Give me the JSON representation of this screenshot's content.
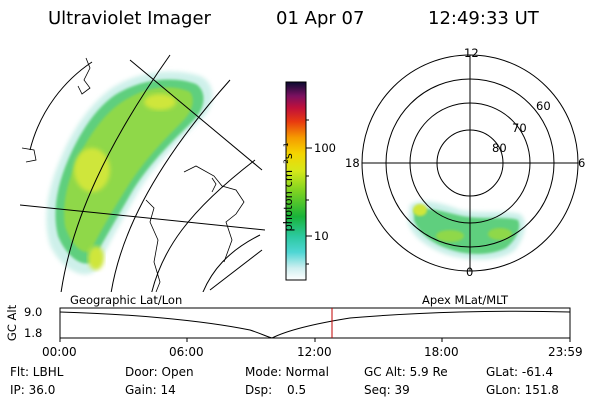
{
  "header": {
    "instrument": "Ultraviolet Imager",
    "date": "01 Apr 07",
    "time": "12:49:33 UT"
  },
  "colorbar": {
    "label": "photon cm⁻²s⁻¹",
    "ticks": [
      "100",
      "10"
    ]
  },
  "polar_plot": {
    "mlt_labels": [
      "12",
      "18",
      "6",
      "0"
    ],
    "lat_labels": [
      "60",
      "70",
      "80"
    ]
  },
  "panels": {
    "left_label": "Geographic Lat/Lon",
    "right_label": "Apex MLat/MLT"
  },
  "altitude_plot": {
    "ylabel": "GC Alt",
    "y_ticks": [
      "9.0",
      "1.8"
    ],
    "x_ticks": [
      "00:00",
      "06:00",
      "12:00",
      "18:00",
      "23:59"
    ]
  },
  "info": {
    "row1": {
      "flt": "Flt: LBHL",
      "door": "Door: Open",
      "mode": "Mode: Normal",
      "gcalt": "GC Alt: 5.9 Re",
      "glat": "GLat: -61.4"
    },
    "row2": {
      "ip": "IP: 36.0",
      "gain": "Gain: 14",
      "dsp_label": "Dsp:",
      "dsp_value": "0.5",
      "seq": "Seq: 39",
      "glon": "GLon: 151.8"
    }
  },
  "colors": {
    "cursor": "#c00000"
  }
}
